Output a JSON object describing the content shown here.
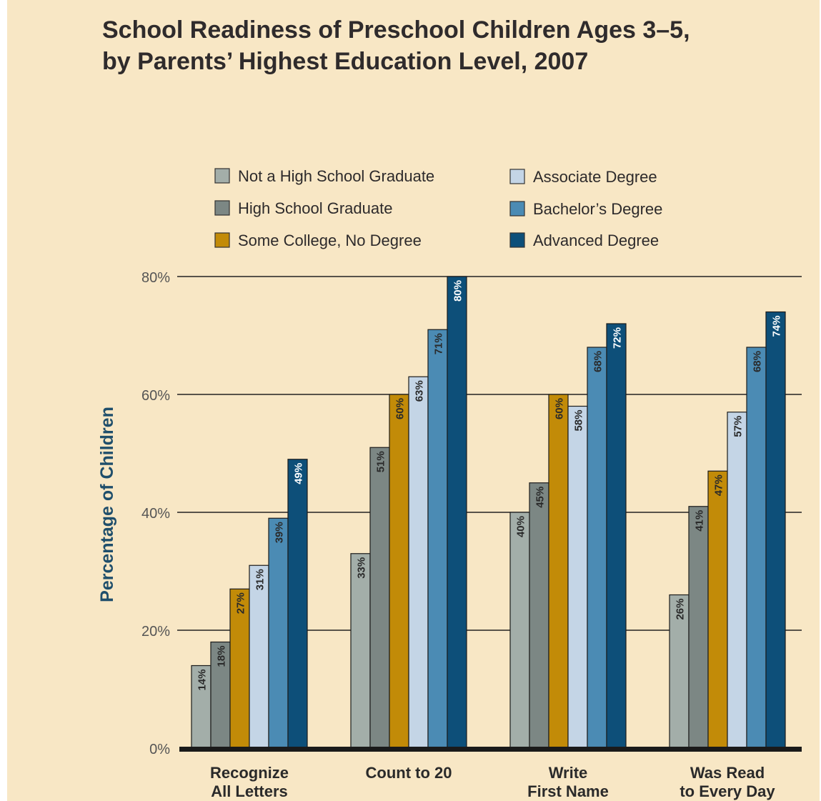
{
  "title_lines": [
    "School Readiness of Preschool Children Ages 3–5,",
    "by Parents’ Highest Education Level, 2007"
  ],
  "colors": {
    "background": "#f8e7c5",
    "title": "#2f2b2c",
    "axis_title": "#1f4e6b",
    "gridline": "#222222",
    "baseline": "#1a1a1a"
  },
  "chart_data": {
    "type": "bar",
    "title": "School Readiness of Preschool Children Ages 3–5, by Parents’ Highest Education Level, 2007",
    "xlabel": "",
    "ylabel": "Percentage of Children",
    "ylim": [
      0,
      80
    ],
    "yticks": [
      0,
      20,
      40,
      60,
      80
    ],
    "ytick_labels": [
      "0%",
      "20%",
      "40%",
      "60%",
      "80%"
    ],
    "grid": true,
    "legend_position": "top",
    "categories": [
      [
        "Recognize",
        "All Letters"
      ],
      [
        "Count to 20"
      ],
      [
        "Write",
        "First Name"
      ],
      [
        "Was Read",
        "to Every Day"
      ]
    ],
    "series": [
      {
        "name": "Not a High School Graduate",
        "color": "#a3aea9",
        "label_color": "#2a2a2a",
        "values": [
          14,
          33,
          40,
          26
        ]
      },
      {
        "name": "High School Graduate",
        "color": "#7c8784",
        "label_color": "#2a2a2a",
        "values": [
          18,
          51,
          45,
          41
        ]
      },
      {
        "name": "Some College, No Degree",
        "color": "#c28b08",
        "label_color": "#2a2a2a",
        "values": [
          27,
          60,
          60,
          47
        ]
      },
      {
        "name": "Associate Degree",
        "color": "#c4d5e6",
        "label_color": "#2a2a2a",
        "values": [
          31,
          63,
          58,
          57
        ]
      },
      {
        "name": "Bachelor’s Degree",
        "color": "#4b8bb4",
        "label_color": "#2a2a2a",
        "values": [
          39,
          71,
          68,
          68
        ]
      },
      {
        "name": "Advanced Degree",
        "color": "#0d4f79",
        "label_color": "#ffffff",
        "values": [
          49,
          80,
          72,
          74
        ]
      }
    ],
    "value_label_suffix": "%"
  }
}
